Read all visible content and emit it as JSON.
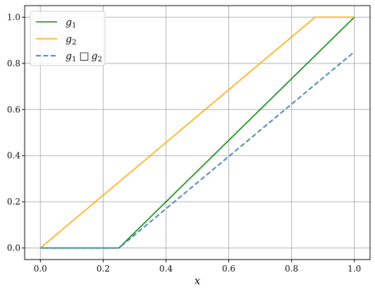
{
  "chart_data": {
    "type": "line",
    "title": "",
    "xlabel": "x",
    "ylabel": "",
    "xlim": [
      -0.05,
      1.05
    ],
    "ylim": [
      -0.05,
      1.05
    ],
    "xticks": [
      0.0,
      0.2,
      0.4,
      0.6,
      0.8,
      1.0
    ],
    "yticks": [
      0.0,
      0.2,
      0.4,
      0.6,
      0.8,
      1.0
    ],
    "xtick_labels": [
      "0.0",
      "0.2",
      "0.4",
      "0.6",
      "0.8",
      "1.0"
    ],
    "ytick_labels": [
      "0.0",
      "0.2",
      "0.4",
      "0.6",
      "0.8",
      "1.0"
    ],
    "grid": true,
    "legend_position": "top-left",
    "series": [
      {
        "name": "g_1",
        "name_base": "g",
        "name_sub": "1",
        "name_op": "",
        "name_base2": "",
        "name_sub2": "",
        "color": "#008000",
        "dash": "solid",
        "x": [
          0.0,
          0.25,
          1.0
        ],
        "y": [
          0.0,
          0.0,
          1.0
        ]
      },
      {
        "name": "g_2",
        "name_base": "g",
        "name_sub": "2",
        "name_op": "",
        "name_base2": "",
        "name_sub2": "",
        "color": "#ffa500",
        "dash": "solid",
        "x": [
          0.0,
          0.875,
          1.0
        ],
        "y": [
          0.0,
          1.0,
          1.0
        ]
      },
      {
        "name": "g_1 □ g_2",
        "name_base": "g",
        "name_sub": "1",
        "name_op": "□",
        "name_base2": "g",
        "name_sub2": "2",
        "color": "#4682b4",
        "dash": "dashed",
        "x": [
          0.0,
          0.25,
          1.0
        ],
        "y": [
          0.0,
          0.0,
          0.85
        ]
      }
    ]
  }
}
